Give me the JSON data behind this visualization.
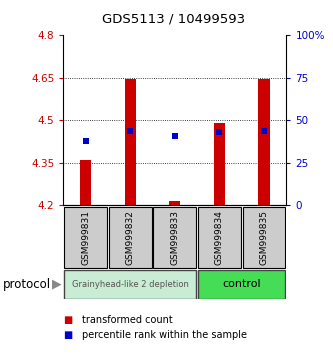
{
  "title": "GDS5113 / 10499593",
  "samples": [
    "GSM999831",
    "GSM999832",
    "GSM999833",
    "GSM999834",
    "GSM999835"
  ],
  "bar_bottom": [
    4.2,
    4.2,
    4.2,
    4.2,
    4.2
  ],
  "bar_top": [
    4.36,
    4.645,
    4.215,
    4.49,
    4.645
  ],
  "percentile_rank": [
    38,
    44,
    41,
    43,
    44
  ],
  "ylim_left": [
    4.2,
    4.8
  ],
  "ylim_right": [
    0,
    100
  ],
  "yticks_left": [
    4.2,
    4.35,
    4.5,
    4.65,
    4.8
  ],
  "yticks_right": [
    0,
    25,
    50,
    75,
    100
  ],
  "ytick_labels_left": [
    "4.2",
    "4.35",
    "4.5",
    "4.65",
    "4.8"
  ],
  "ytick_labels_right": [
    "0",
    "25",
    "50",
    "75",
    "100%"
  ],
  "bar_color": "#cc0000",
  "marker_color": "#0000cc",
  "group1_label": "Grainyhead-like 2 depletion",
  "group2_label": "control",
  "group1_color": "#c8ecd4",
  "group2_color": "#44dd55",
  "group1_samples": [
    0,
    1,
    2
  ],
  "group2_samples": [
    3,
    4
  ],
  "protocol_label": "protocol",
  "legend_bar_label": "transformed count",
  "legend_marker_label": "percentile rank within the sample",
  "background_color": "#ffffff",
  "bar_width": 0.25
}
